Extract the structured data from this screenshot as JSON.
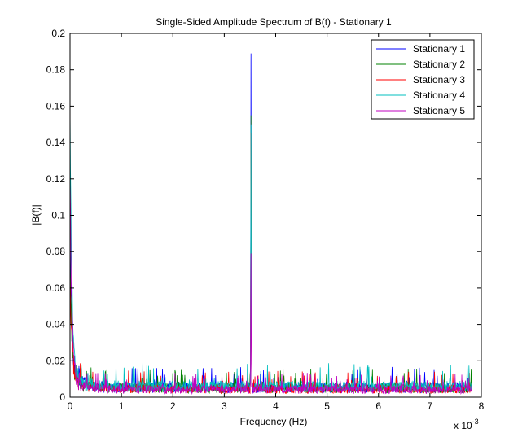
{
  "chart_data": {
    "type": "line",
    "title": "Single-Sided Amplitude Spectrum of B(t) - Stationary 1",
    "xlabel": "Frequency (Hz)",
    "ylabel": "|B(f)|",
    "x_exponent_label": "x 10",
    "x_exponent_power": "-3",
    "xlim": [
      0,
      8
    ],
    "ylim": [
      0,
      0.2
    ],
    "x_ticks": [
      "0",
      "1",
      "2",
      "3",
      "4",
      "5",
      "6",
      "7",
      "8"
    ],
    "y_ticks": [
      "0",
      "0.02",
      "0.04",
      "0.06",
      "0.08",
      "0.1",
      "0.12",
      "0.14",
      "0.16",
      "0.18",
      "0.2"
    ],
    "grid": false,
    "legend_position": "top-right",
    "series": [
      {
        "name": "Stationary 1",
        "color": "#0000ff",
        "peak_x": 3.52,
        "peak_y": 0.189,
        "low_y": 0.082,
        "noise": 0.004
      },
      {
        "name": "Stationary 2",
        "color": "#008000",
        "peak_x": 3.52,
        "peak_y": 0.155,
        "low_y": 0.07,
        "noise": 0.0038
      },
      {
        "name": "Stationary 3",
        "color": "#ff0000",
        "peak_x": 3.52,
        "peak_y": 0.145,
        "low_y": 0.06,
        "noise": 0.0035
      },
      {
        "name": "Stationary 4",
        "color": "#00bfbf",
        "peak_x": 3.52,
        "peak_y": 0.15,
        "low_y": 0.15,
        "noise": 0.0045
      },
      {
        "name": "Stationary 5",
        "color": "#bf00bf",
        "peak_x": 3.52,
        "peak_y": 0.079,
        "low_y": 0.115,
        "noise": 0.0032
      }
    ]
  }
}
